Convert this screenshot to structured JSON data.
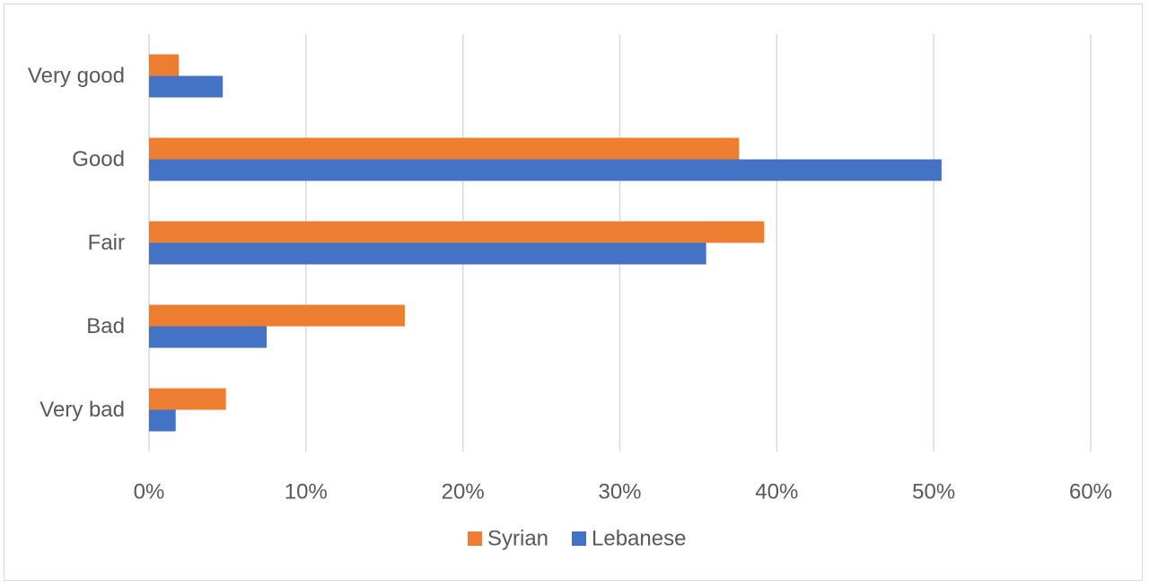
{
  "chart_data": {
    "type": "bar",
    "orientation": "horizontal",
    "categories": [
      "Very good",
      "Good",
      "Fair",
      "Bad",
      "Very bad"
    ],
    "series": [
      {
        "name": "Syrian",
        "color": "#ed7d31",
        "values": [
          1.9,
          37.6,
          39.2,
          16.3,
          4.9
        ]
      },
      {
        "name": "Lebanese",
        "color": "#4472c4",
        "values": [
          4.7,
          50.5,
          35.5,
          7.5,
          1.7
        ]
      }
    ],
    "xlim": [
      0,
      60
    ],
    "x_ticks": [
      0,
      10,
      20,
      30,
      40,
      50,
      60
    ],
    "x_tick_labels": [
      "0%",
      "10%",
      "20%",
      "30%",
      "40%",
      "50%",
      "60%"
    ],
    "grid": true,
    "legend_position": "bottom",
    "gridline_color": "#d9d9d9",
    "label_color": "#595959"
  }
}
